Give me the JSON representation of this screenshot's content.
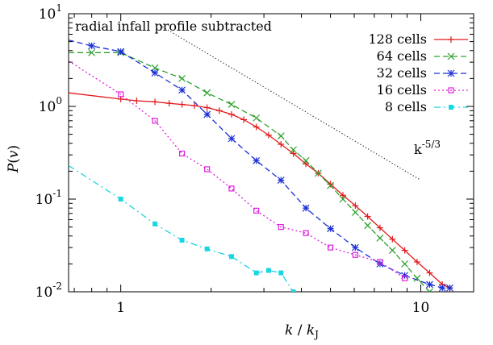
{
  "chart_data": {
    "type": "line",
    "annotation": "radial infall profile subtracted",
    "slope_label": "k-5/3",
    "xlabel": "k / kJ",
    "ylabel": "P(v)",
    "x_scale": "log",
    "y_scale": "log",
    "xlim": [
      0.67,
      15
    ],
    "ylim": [
      0.01,
      10
    ],
    "x_ticks": [
      {
        "value": 1,
        "label": "1"
      },
      {
        "value": 10,
        "label": "10"
      }
    ],
    "y_ticks": [
      {
        "value": 0.01,
        "base": "10",
        "exp": "-2"
      },
      {
        "value": 0.1,
        "base": "10",
        "exp": "-1"
      },
      {
        "value": 1,
        "base": "10",
        "exp": "0"
      },
      {
        "value": 10,
        "base": "10",
        "exp": "1"
      }
    ],
    "grid": false,
    "legend_position": "top-right",
    "reference_line": {
      "label": "k^-5/3",
      "points": [
        [
          1.35,
          7.5
        ],
        [
          10,
          0.16
        ]
      ]
    },
    "series": [
      {
        "name": "128 cells",
        "color": "#e31a1c",
        "dash": "solid",
        "marker": "plus",
        "x": [
          0.67,
          1.0,
          1.13,
          1.3,
          1.45,
          1.6,
          1.76,
          1.94,
          2.13,
          2.34,
          2.57,
          2.83,
          3.11,
          3.42,
          3.76,
          4.14,
          4.55,
          5.0,
          5.5,
          6.05,
          6.65,
          7.31,
          8.04,
          8.84,
          9.72,
          10.7,
          11.8,
          12.5
        ],
        "y": [
          1.4,
          1.2,
          1.15,
          1.12,
          1.08,
          1.05,
          1.02,
          0.97,
          0.9,
          0.82,
          0.72,
          0.6,
          0.49,
          0.39,
          0.31,
          0.24,
          0.19,
          0.145,
          0.11,
          0.085,
          0.065,
          0.049,
          0.037,
          0.028,
          0.021,
          0.016,
          0.012,
          0.011
        ]
      },
      {
        "name": "64 cells",
        "color": "#2ca02c",
        "dash": "dashed",
        "marker": "cross",
        "x": [
          0.67,
          0.8,
          1.0,
          1.3,
          1.6,
          1.94,
          2.34,
          2.83,
          3.42,
          3.76,
          4.14,
          4.55,
          5.0,
          5.5,
          6.05,
          6.65,
          7.31,
          8.04,
          8.84,
          9.72,
          10.7
        ],
        "y": [
          3.8,
          3.8,
          3.8,
          2.6,
          2.0,
          1.4,
          1.05,
          0.75,
          0.48,
          0.34,
          0.26,
          0.19,
          0.14,
          0.1,
          0.072,
          0.052,
          0.038,
          0.028,
          0.02,
          0.014,
          0.01
        ]
      },
      {
        "name": "32 cells",
        "color": "#1a2fd6",
        "dash": "dashed",
        "marker": "star",
        "x": [
          0.67,
          0.8,
          1.0,
          1.3,
          1.6,
          1.94,
          2.34,
          2.83,
          3.42,
          4.14,
          5.0,
          6.05,
          7.31,
          8.84,
          10.7,
          11.8,
          12.5
        ],
        "y": [
          5.2,
          4.5,
          3.9,
          2.3,
          1.5,
          0.82,
          0.45,
          0.26,
          0.16,
          0.08,
          0.048,
          0.03,
          0.02,
          0.015,
          0.012,
          0.011,
          0.011
        ]
      },
      {
        "name": "16 cells",
        "color": "#e020e0",
        "dash": "dotted",
        "marker": "square",
        "x": [
          0.67,
          1.0,
          1.3,
          1.6,
          1.94,
          2.34,
          2.83,
          3.42,
          4.14,
          5.0,
          6.05,
          7.31,
          8.84
        ],
        "y": [
          3.1,
          1.35,
          0.7,
          0.31,
          0.21,
          0.13,
          0.075,
          0.05,
          0.043,
          0.03,
          0.025,
          0.021,
          0.014
        ]
      },
      {
        "name": "8 cells",
        "color": "#1ad6e0",
        "dash": "dashdot",
        "marker": "filled-square",
        "x": [
          0.67,
          1.0,
          1.3,
          1.6,
          1.94,
          2.34,
          2.83,
          3.11,
          3.42,
          3.76
        ],
        "y": [
          0.23,
          0.1,
          0.054,
          0.036,
          0.029,
          0.024,
          0.016,
          0.017,
          0.016,
          0.01
        ]
      }
    ]
  }
}
